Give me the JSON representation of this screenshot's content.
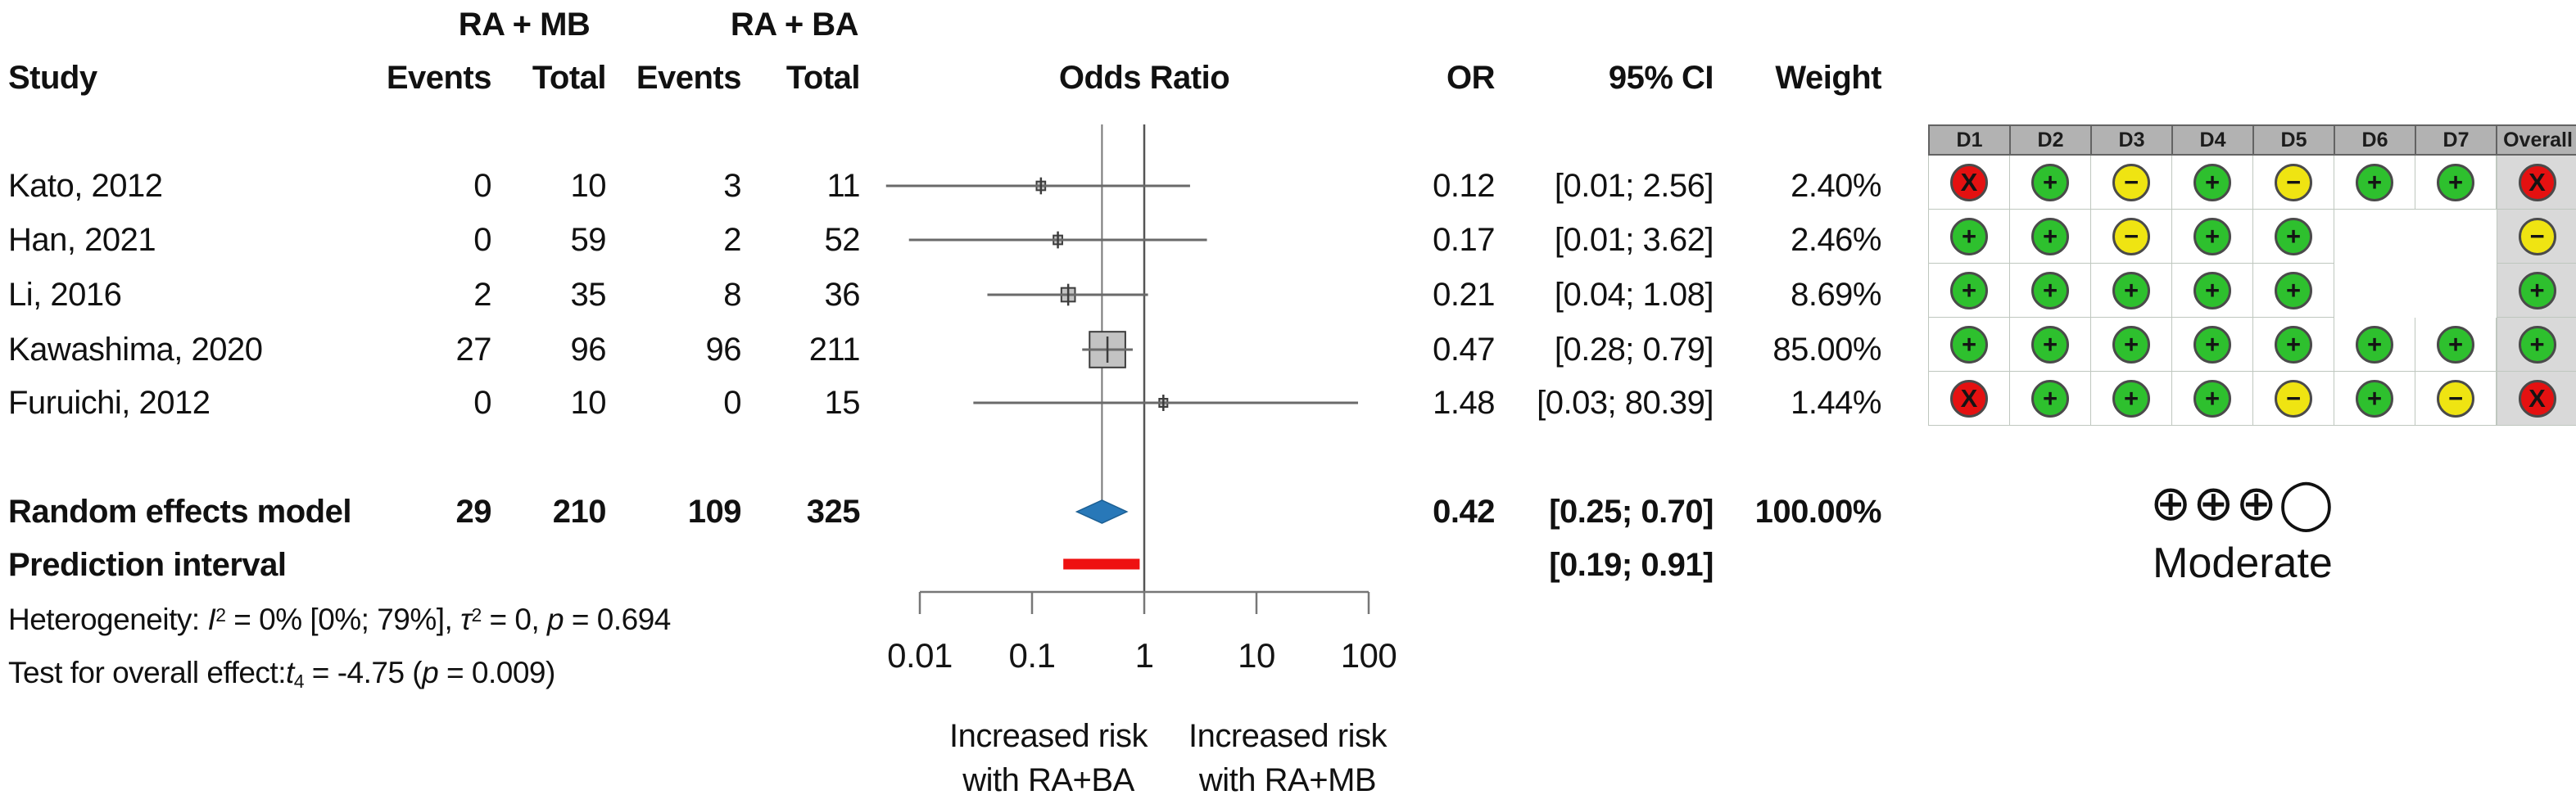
{
  "header": {
    "group1": "RA + MB",
    "group2": "RA + BA",
    "study": "Study",
    "events1": "Events",
    "total1": "Total",
    "events2": "Events",
    "total2": "Total",
    "odds_ratio": "Odds Ratio",
    "or": "OR",
    "ci": "95% CI",
    "weight": "Weight"
  },
  "rows": [
    {
      "study": "Kato, 2012",
      "e1": "0",
      "t1": "10",
      "e2": "3",
      "t2": "11",
      "or": "0.12",
      "ci": "[0.01; 2.56]",
      "weight": "2.40%"
    },
    {
      "study": "Han, 2021",
      "e1": "0",
      "t1": "59",
      "e2": "2",
      "t2": "52",
      "or": "0.17",
      "ci": "[0.01; 3.62]",
      "weight": "2.46%"
    },
    {
      "study": "Li, 2016",
      "e1": "2",
      "t1": "35",
      "e2": "8",
      "t2": "36",
      "or": "0.21",
      "ci": "[0.04; 1.08]",
      "weight": "8.69%"
    },
    {
      "study": "Kawashima, 2020",
      "e1": "27",
      "t1": "96",
      "e2": "96",
      "t2": "211",
      "or": "0.47",
      "ci": "[0.28; 0.79]",
      "weight": "85.00%"
    },
    {
      "study": "Furuichi, 2012",
      "e1": "0",
      "t1": "10",
      "e2": "0",
      "t2": "15",
      "or": "1.48",
      "ci": "[0.03; 80.39]",
      "weight": "1.44%"
    }
  ],
  "summary": {
    "label": "Random effects model",
    "e1": "29",
    "t1": "210",
    "e2": "109",
    "t2": "325",
    "or": "0.42",
    "ci": "[0.25; 0.70]",
    "weight": "100.00%"
  },
  "prediction": {
    "label": "Prediction interval",
    "ci": "[0.19; 0.91]"
  },
  "heterogeneity_segments": [
    {
      "t": "Heterogeneity: "
    },
    {
      "t": "I",
      "i": 1
    },
    {
      "t": "2",
      "sup": 1
    },
    {
      "t": " = 0% [0%; 79%], "
    },
    {
      "t": "τ",
      "i": 1
    },
    {
      "t": "2",
      "sup": 1
    },
    {
      "t": " = 0, "
    },
    {
      "t": "p",
      "i": 1
    },
    {
      "t": " = 0.694"
    }
  ],
  "test_segments": [
    {
      "t": "Test for overall effect:"
    },
    {
      "t": "t",
      "i": 1
    },
    {
      "t": "4",
      "sub": 1
    },
    {
      "t": " = -4.75 ("
    },
    {
      "t": "p",
      "i": 1
    },
    {
      "t": " = 0.009)"
    }
  ],
  "direction_labels": {
    "left_line1": "Increased risk",
    "left_line2": "with RA+BA",
    "right_line1": "Increased risk",
    "right_line2": "with RA+MB"
  },
  "grade": {
    "symbols": "⊕⊕⊕◯",
    "label": "Moderate"
  },
  "rob": {
    "headers": [
      "D1",
      "D2",
      "D3",
      "D4",
      "D5",
      "D6",
      "D7",
      "Overall"
    ],
    "rows": [
      [
        "x",
        "+",
        "-",
        "+",
        "-",
        "+",
        "+",
        "x"
      ],
      [
        "+",
        "+",
        "-",
        "+",
        "+",
        "",
        "",
        "-"
      ],
      [
        "+",
        "+",
        "+",
        "+",
        "+",
        "",
        "",
        "+"
      ],
      [
        "+",
        "+",
        "+",
        "+",
        "+",
        "+",
        "+",
        "+"
      ],
      [
        "x",
        "+",
        "+",
        "+",
        "-",
        "+",
        "-",
        "x"
      ]
    ],
    "legend_colors": {
      "plus": "#2ec02e",
      "minus": "#efe412",
      "x": "#e41111"
    }
  },
  "chart_data": {
    "type": "forest",
    "x_scale": "log",
    "x_ticks": [
      {
        "v": 0.01,
        "label": "0.01"
      },
      {
        "v": 0.1,
        "label": "0.1"
      },
      {
        "v": 1,
        "label": "1"
      },
      {
        "v": 10,
        "label": "10"
      },
      {
        "v": 100,
        "label": "100"
      }
    ],
    "ref_line": 1,
    "pooled_line": 0.42,
    "studies": [
      {
        "name": "Kato, 2012",
        "or": 0.12,
        "ci_low": 0.01,
        "ci_high": 2.56,
        "weight": 2.4,
        "plot_low": 0.005
      },
      {
        "name": "Han, 2021",
        "or": 0.17,
        "ci_low": 0.01,
        "ci_high": 3.62,
        "weight": 2.46,
        "plot_low": 0.008
      },
      {
        "name": "Li, 2016",
        "or": 0.21,
        "ci_low": 0.04,
        "ci_high": 1.08,
        "weight": 8.69
      },
      {
        "name": "Kawashima, 2020",
        "or": 0.47,
        "ci_low": 0.28,
        "ci_high": 0.79,
        "weight": 85.0
      },
      {
        "name": "Furuichi, 2012",
        "or": 1.48,
        "ci_low": 0.03,
        "ci_high": 80.39,
        "weight": 1.44
      }
    ],
    "summary": {
      "or": 0.42,
      "ci_low": 0.25,
      "ci_high": 0.7
    },
    "prediction_interval": {
      "ci_low": 0.19,
      "ci_high": 0.91
    },
    "colors": {
      "diamond": "#2878b8",
      "diamond_edge": "#1c5f93",
      "prediction_bar": "#ee1111",
      "ci_line": "#6a6a6a",
      "square_fill": "#c3c3c3",
      "square_edge": "#3c3c3c",
      "ref_line": "#555555",
      "pooled_line": "#777777",
      "axis": "#777777"
    }
  }
}
